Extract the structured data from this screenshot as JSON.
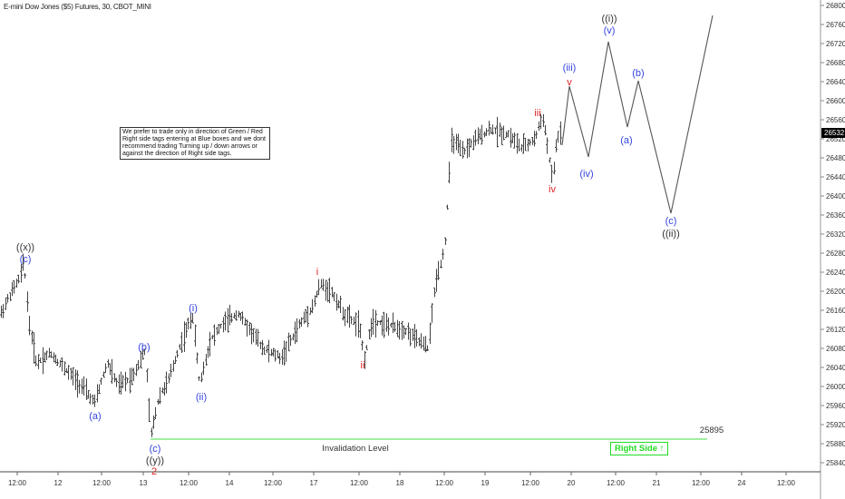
{
  "header": {
    "title": "E-mini Dow Jones ($5) Futures, 30, CBOT_MINI"
  },
  "note_box": {
    "text": "We prefer to trade only in direction of Green / Red Right side tags entering at Blue boxes and we dont recommend trading Turning up / down arrows or against the direction of Right side tags."
  },
  "right_side_tag": {
    "label": "Right Side",
    "arrow": "↑",
    "color": "#22dd22"
  },
  "invalidation": {
    "label": "Invalidation Level",
    "value": "25895",
    "color": "#33dd33"
  },
  "last_price": {
    "value": "26532"
  },
  "colors": {
    "blue_label": "#3344dd",
    "red_label": "#dd2222",
    "black_label": "#333333",
    "bars": "#444444",
    "projection": "#555555"
  },
  "chart_data": {
    "type": "ohlc",
    "title": "E-mini Dow Jones ($5) Futures, 30, CBOT_MINI",
    "xlabel": "",
    "ylabel": "",
    "x_ticks": [
      "12:00",
      "12",
      "12:00",
      "13",
      "12:00",
      "14",
      "12:00",
      "17",
      "12:00",
      "18",
      "12:00",
      "19",
      "12:00",
      "20",
      "12:00",
      "21",
      "12:00",
      "24",
      "12:00"
    ],
    "y_ticks": [
      26800,
      26760,
      26720,
      26680,
      26640,
      26600,
      26560,
      26520,
      26480,
      26440,
      26400,
      26360,
      26320,
      26280,
      26240,
      26200,
      26160,
      26120,
      26080,
      26040,
      26000,
      25960,
      25920,
      25880,
      25840
    ],
    "ylim": [
      25810,
      26810
    ],
    "grid": false,
    "last_price": 26532,
    "invalidation_level": 25895,
    "wave_labels": [
      {
        "label": "((x))",
        "color": "black",
        "price": 26265
      },
      {
        "label": "(c)",
        "color": "blue",
        "price": 26260
      },
      {
        "label": "(a)",
        "color": "blue",
        "price": 25965
      },
      {
        "label": "(b)",
        "color": "blue",
        "price": 26075
      },
      {
        "label": "(c)",
        "color": "blue",
        "price": 25895
      },
      {
        "label": "((y))",
        "color": "black",
        "price": 25895
      },
      {
        "label": "2",
        "color": "red",
        "price": 25895
      },
      {
        "label": "(i)",
        "color": "blue",
        "price": 26150
      },
      {
        "label": "(ii)",
        "color": "blue",
        "price": 26005
      },
      {
        "label": "i",
        "color": "red",
        "price": 26215
      },
      {
        "label": "ii",
        "color": "red",
        "price": 26060
      },
      {
        "label": "iii",
        "color": "red",
        "price": 26580
      },
      {
        "label": "iv",
        "color": "red",
        "price": 26430
      },
      {
        "label": "v",
        "color": "red",
        "price": 26630
      },
      {
        "label": "(iii)",
        "color": "blue",
        "price": 26630
      },
      {
        "label": "(iv)",
        "color": "blue",
        "price": 26460
      },
      {
        "label": "(v)",
        "color": "blue",
        "price": 26725
      },
      {
        "label": "((i))",
        "color": "black",
        "price": 26725
      },
      {
        "label": "(a)",
        "color": "blue",
        "price": 26535
      },
      {
        "label": "(b)",
        "color": "blue",
        "price": 26645
      },
      {
        "label": "(c)",
        "color": "blue",
        "price": 26360
      },
      {
        "label": "((ii))",
        "color": "black",
        "price": 26360
      }
    ],
    "projection_path_prices": [
      26475,
      26630,
      26460,
      26725,
      26535,
      26645,
      26360,
      26780
    ],
    "price_path_approx": [
      {
        "x": "11 12:00",
        "price": 26160
      },
      {
        "x": "11 late",
        "price": 26260
      },
      {
        "x": "12",
        "price": 26050
      },
      {
        "x": "12 12:00",
        "price": 25965
      },
      {
        "x": "13 early",
        "price": 26075
      },
      {
        "x": "13",
        "price": 25895
      },
      {
        "x": "13 12:00",
        "price": 26150
      },
      {
        "x": "13 late",
        "price": 26005
      },
      {
        "x": "14 12:00",
        "price": 26165
      },
      {
        "x": "17",
        "price": 26030
      },
      {
        "x": "17 late",
        "price": 26215
      },
      {
        "x": "17 12:00",
        "price": 26060
      },
      {
        "x": "18 late",
        "price": 26080
      },
      {
        "x": "18 12:00",
        "price": 26290
      },
      {
        "x": "19",
        "price": 26540
      },
      {
        "x": "19 12:00",
        "price": 26520
      },
      {
        "x": "20 early",
        "price": 26580
      },
      {
        "x": "20 early",
        "price": 26430
      },
      {
        "x": "20",
        "price": 26560
      }
    ]
  }
}
